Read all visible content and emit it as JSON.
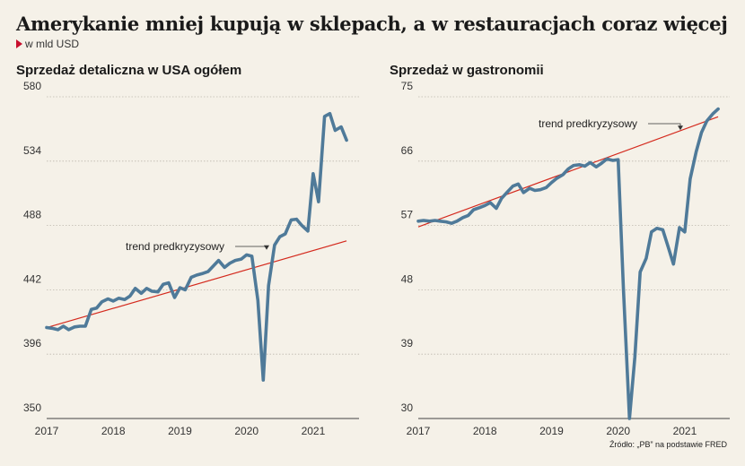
{
  "title": "Amerykanie mniej kupują w sklepach, a w restauracjach coraz więcej",
  "unit": "w mld USD",
  "source": "Źródło: „PB” na podstawie FRED",
  "colors": {
    "series": "#4f7a99",
    "trend": "#d42a1e",
    "accent": "#c8102e",
    "background": "#f5f1e8"
  },
  "chart_data": [
    {
      "type": "line",
      "title": "Sprzedaż detaliczna w USA ogółem",
      "ylim": [
        350,
        580
      ],
      "yticks": [
        "580",
        "534",
        "488",
        "442",
        "396",
        "350"
      ],
      "xlim": [
        2017,
        2021.58
      ],
      "xticks": [
        "2017",
        "2018",
        "2019",
        "2020",
        "2021"
      ],
      "grid": "horizontal",
      "annotation": {
        "text": "trend predkryzysowy"
      },
      "trend": {
        "x": [
          2017,
          2021.5
        ],
        "y": [
          415,
          477
        ]
      },
      "series": [
        {
          "x": [
            2017.0,
            2017.08,
            2017.17,
            2017.25,
            2017.33,
            2017.42,
            2017.5,
            2017.58,
            2017.67,
            2017.75,
            2017.83,
            2017.92,
            2018.0,
            2018.08,
            2018.17,
            2018.25,
            2018.33,
            2018.42,
            2018.5,
            2018.58,
            2018.67,
            2018.75,
            2018.83,
            2018.92,
            2019.0,
            2019.08,
            2019.17,
            2019.25,
            2019.33,
            2019.42,
            2019.5,
            2019.58,
            2019.67,
            2019.75,
            2019.83,
            2019.92,
            2020.0,
            2020.08,
            2020.17,
            2020.25,
            2020.33,
            2020.42,
            2020.5,
            2020.58,
            2020.67,
            2020.75,
            2020.83,
            2020.92,
            2021.0,
            2021.08,
            2021.17,
            2021.25,
            2021.33,
            2021.42,
            2021.5
          ],
          "y": [
            415,
            414.5,
            413.5,
            416,
            413.5,
            415.5,
            416,
            416,
            428,
            429,
            433.5,
            435.5,
            434,
            436,
            435,
            437.5,
            443,
            439.5,
            443,
            441,
            440.5,
            446,
            447,
            436.5,
            443.5,
            442,
            451,
            452.5,
            453.5,
            455,
            459,
            463,
            458,
            461,
            463,
            464,
            467,
            466,
            434.5,
            377.5,
            445,
            474,
            480,
            482,
            492,
            492.5,
            488,
            484,
            525,
            505,
            566,
            568,
            556,
            558.5,
            549
          ]
        }
      ]
    },
    {
      "type": "line",
      "title": "Sprzedaż w gastronomii",
      "ylim": [
        30,
        75
      ],
      "yticks": [
        "75",
        "66",
        "57",
        "48",
        "39",
        "30"
      ],
      "xlim": [
        2017,
        2021.58
      ],
      "xticks": [
        "2017",
        "2018",
        "2019",
        "2020",
        "2021"
      ],
      "grid": "horizontal",
      "annotation": {
        "text": "trend predkryzysowy"
      },
      "trend": {
        "x": [
          2017,
          2021.5
        ],
        "y": [
          56.8,
          72.2
        ]
      },
      "series": [
        {
          "x": [
            2017.0,
            2017.08,
            2017.17,
            2017.25,
            2017.33,
            2017.42,
            2017.5,
            2017.58,
            2017.67,
            2017.75,
            2017.83,
            2017.92,
            2018.0,
            2018.08,
            2018.17,
            2018.25,
            2018.33,
            2018.42,
            2018.5,
            2018.58,
            2018.67,
            2018.75,
            2018.83,
            2018.92,
            2019.0,
            2019.08,
            2019.17,
            2019.25,
            2019.33,
            2019.42,
            2019.5,
            2019.58,
            2019.67,
            2019.75,
            2019.83,
            2019.92,
            2020.0,
            2020.08,
            2020.17,
            2020.25,
            2020.33,
            2020.42,
            2020.5,
            2020.58,
            2020.67,
            2020.75,
            2020.83,
            2020.92,
            2021.0,
            2021.08,
            2021.17,
            2021.25,
            2021.33,
            2021.42,
            2021.5
          ],
          "y": [
            57.6,
            57.7,
            57.6,
            57.7,
            57.6,
            57.5,
            57.3,
            57.6,
            58.1,
            58.4,
            59.2,
            59.5,
            59.8,
            60.2,
            59.4,
            60.8,
            61.6,
            62.5,
            62.8,
            61.6,
            62.2,
            61.9,
            62.0,
            62.3,
            63.0,
            63.6,
            64.1,
            64.9,
            65.4,
            65.5,
            65.3,
            65.8,
            65.2,
            65.7,
            66.3,
            66.1,
            66.2,
            48.0,
            30.0,
            38.6,
            50.5,
            52.4,
            56.1,
            56.6,
            56.4,
            54.0,
            51.6,
            56.7,
            56.1,
            63.5,
            67.3,
            70.0,
            71.6,
            72.6,
            73.3
          ]
        }
      ]
    }
  ]
}
